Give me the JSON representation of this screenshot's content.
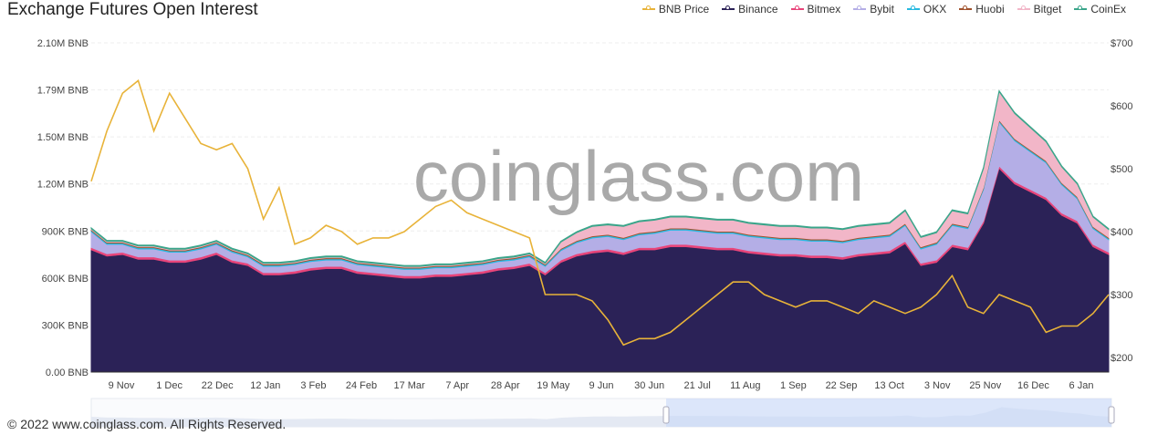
{
  "chart_data": {
    "type": "area",
    "title": "Exchange  Futures Open Interest",
    "start_date": "2021-10-27",
    "interval_days": 7,
    "x_tick_labels": [
      "9 Nov",
      "1 Dec",
      "22 Dec",
      "12 Jan",
      "3 Feb",
      "24 Feb",
      "17 Mar",
      "7 Apr",
      "28 Apr",
      "19 May",
      "9 Jun",
      "30 Jun",
      "21 Jul",
      "11 Aug",
      "1 Sep",
      "22 Sep",
      "13 Oct",
      "3 Nov",
      "25 Nov",
      "16 Dec",
      "6 Jan"
    ],
    "y_left": {
      "unit": "M BNB",
      "range": [
        0,
        2.1
      ],
      "tick_labels": [
        "0.00 BNB",
        "300K BNB",
        "600K BNB",
        "900K BNB",
        "1.20M BNB",
        "1.50M BNB",
        "1.79M BNB",
        "2.10M BNB"
      ]
    },
    "y_right": {
      "unit": "USD",
      "range": [
        200,
        700
      ],
      "tick_labels": [
        "$200",
        "$300",
        "$400",
        "$500",
        "$600",
        "$700"
      ]
    },
    "legend_position": "top-right",
    "watermark": "coinglass.com",
    "series": [
      {
        "name": "Binance",
        "color": "#2b2257",
        "kind": "stack",
        "values": [
          0.78,
          0.74,
          0.75,
          0.72,
          0.72,
          0.7,
          0.7,
          0.72,
          0.75,
          0.7,
          0.68,
          0.62,
          0.62,
          0.63,
          0.65,
          0.66,
          0.66,
          0.63,
          0.62,
          0.61,
          0.6,
          0.6,
          0.61,
          0.61,
          0.62,
          0.63,
          0.65,
          0.66,
          0.68,
          0.62,
          0.7,
          0.74,
          0.76,
          0.77,
          0.75,
          0.78,
          0.78,
          0.8,
          0.8,
          0.79,
          0.78,
          0.78,
          0.76,
          0.75,
          0.74,
          0.74,
          0.73,
          0.73,
          0.72,
          0.74,
          0.75,
          0.76,
          0.82,
          0.68,
          0.7,
          0.8,
          0.78,
          0.95,
          1.3,
          1.2,
          1.15,
          1.1,
          1.0,
          0.95,
          0.8,
          0.75
        ]
      },
      {
        "name": "Bitmex",
        "color": "#e8457a",
        "kind": "stack",
        "values": 0.015
      },
      {
        "name": "Bybit",
        "color": "#b4aee6",
        "kind": "stack",
        "values": [
          0.1,
          0.06,
          0.05,
          0.05,
          0.05,
          0.05,
          0.05,
          0.05,
          0.05,
          0.05,
          0.04,
          0.04,
          0.04,
          0.04,
          0.04,
          0.04,
          0.04,
          0.04,
          0.04,
          0.04,
          0.04,
          0.04,
          0.04,
          0.04,
          0.04,
          0.04,
          0.04,
          0.04,
          0.04,
          0.04,
          0.06,
          0.07,
          0.08,
          0.08,
          0.08,
          0.08,
          0.09,
          0.09,
          0.09,
          0.09,
          0.09,
          0.09,
          0.09,
          0.09,
          0.09,
          0.09,
          0.09,
          0.09,
          0.09,
          0.09,
          0.09,
          0.09,
          0.1,
          0.09,
          0.1,
          0.12,
          0.12,
          0.2,
          0.28,
          0.26,
          0.24,
          0.22,
          0.18,
          0.14,
          0.1,
          0.08
        ]
      },
      {
        "name": "OKX",
        "color": "#27b9e0",
        "kind": "stack",
        "values": 0.008
      },
      {
        "name": "Huobi",
        "color": "#a0522d",
        "kind": "stack",
        "values": 0.006
      },
      {
        "name": "Bitget",
        "color": "#f2b6c8",
        "kind": "stack",
        "values": [
          0.005,
          0.005,
          0.005,
          0.005,
          0.005,
          0.005,
          0.005,
          0.005,
          0.005,
          0.005,
          0.005,
          0.005,
          0.005,
          0.005,
          0.005,
          0.005,
          0.005,
          0.005,
          0.005,
          0.005,
          0.005,
          0.005,
          0.005,
          0.005,
          0.005,
          0.005,
          0.005,
          0.005,
          0.005,
          0.005,
          0.04,
          0.05,
          0.06,
          0.06,
          0.07,
          0.07,
          0.07,
          0.07,
          0.07,
          0.07,
          0.07,
          0.07,
          0.07,
          0.07,
          0.07,
          0.07,
          0.07,
          0.07,
          0.07,
          0.07,
          0.07,
          0.07,
          0.08,
          0.06,
          0.06,
          0.08,
          0.08,
          0.12,
          0.18,
          0.16,
          0.14,
          0.12,
          0.1,
          0.08,
          0.06,
          0.05
        ]
      },
      {
        "name": "CoinEx",
        "color": "#3aa58a",
        "kind": "stack",
        "values": 0.006
      },
      {
        "name": "BNB Price",
        "color": "#e8b339",
        "kind": "line",
        "axis": "right",
        "values": [
          480,
          560,
          620,
          640,
          560,
          620,
          580,
          540,
          530,
          540,
          500,
          420,
          470,
          380,
          390,
          410,
          400,
          380,
          390,
          390,
          400,
          420,
          440,
          450,
          430,
          420,
          410,
          400,
          390,
          300,
          300,
          300,
          290,
          260,
          220,
          230,
          230,
          240,
          260,
          280,
          300,
          320,
          320,
          300,
          290,
          280,
          290,
          290,
          280,
          270,
          290,
          280,
          270,
          280,
          300,
          330,
          280,
          270,
          300,
          290,
          280,
          240,
          250,
          250,
          270,
          300
        ]
      }
    ],
    "legend_order": [
      "BNB Price",
      "Binance",
      "Bitmex",
      "Bybit",
      "OKX",
      "Huobi",
      "Bitget",
      "CoinEx"
    ]
  },
  "footer": "© 2022 www.coinglass.com. All Rights Reserved."
}
